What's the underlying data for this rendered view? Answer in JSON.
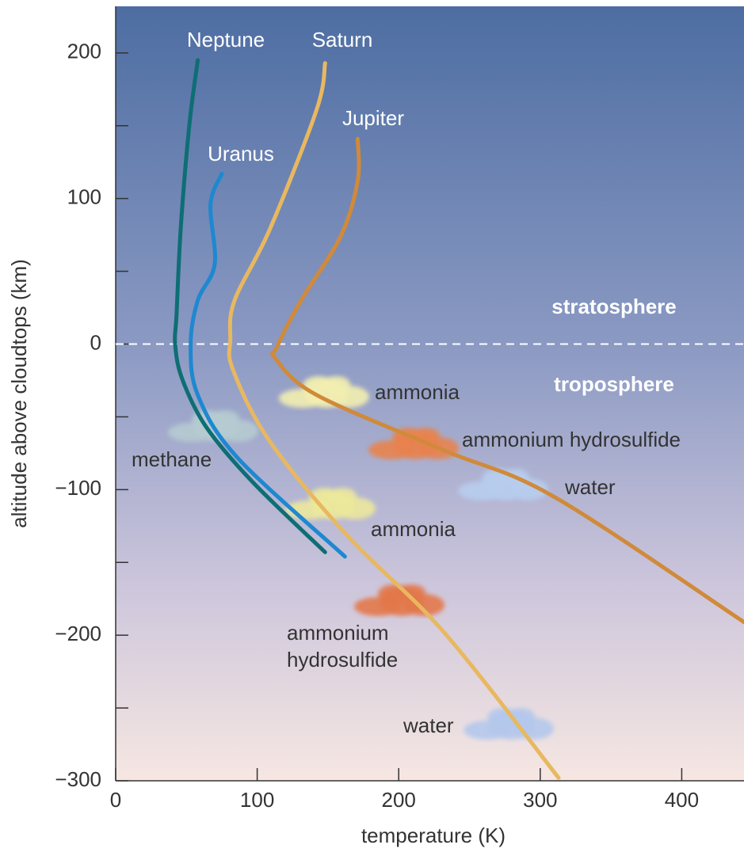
{
  "chart_data": {
    "type": "line",
    "xlabel": "temperature (K)",
    "ylabel": "altitude above cloudtops (km)",
    "xlim": [
      0,
      444
    ],
    "ylim": [
      -300,
      232
    ],
    "xticks": [
      0,
      100,
      200,
      300,
      400
    ],
    "yticks": [
      {
        "value": -300,
        "label": "−300"
      },
      {
        "value": -200,
        "label": "−200"
      },
      {
        "value": -100,
        "label": "−100"
      },
      0,
      100,
      200
    ],
    "yminor_ticks": [
      -250,
      -150,
      -50,
      50,
      150
    ],
    "series": [
      {
        "name": "Neptune",
        "color": "#0e6e74",
        "x": [
          58,
          52,
          46,
          43,
          42,
          47,
          64,
          97,
          148
        ],
        "values": [
          195,
          150,
          80,
          20,
          0,
          -24,
          -57,
          -95,
          -143
        ]
      },
      {
        "name": "Saturn",
        "color": "#e8b860",
        "x": [
          148,
          142,
          109,
          84,
          81,
          83,
          109,
          165,
          232,
          313
        ],
        "values": [
          193,
          161,
          79,
          30,
          3,
          -18,
          -67,
          -133,
          -198,
          -298
        ]
      },
      {
        "name": "Jupiter",
        "color": "#d08a3a",
        "x": [
          171,
          171,
          159,
          131,
          114,
          113,
          142,
          232,
          310,
          444
        ],
        "values": [
          141,
          112,
          74,
          30,
          -2,
          -10,
          -35,
          -73,
          -105,
          -191
        ]
      },
      {
        "name": "Uranus",
        "color": "#1e88d0",
        "x": [
          75,
          67,
          70,
          58,
          53,
          58,
          86,
          162
        ],
        "values": [
          117,
          96,
          55,
          30,
          0,
          -35,
          -78,
          -146
        ]
      }
    ],
    "regions": [
      "stratosphere",
      "troposphere"
    ],
    "annotations": [
      "ammonia",
      "ammonium hydrosulfide",
      "water",
      "methane",
      "ammonia",
      "ammonium",
      "hydrosulfide",
      "water"
    ]
  }
}
